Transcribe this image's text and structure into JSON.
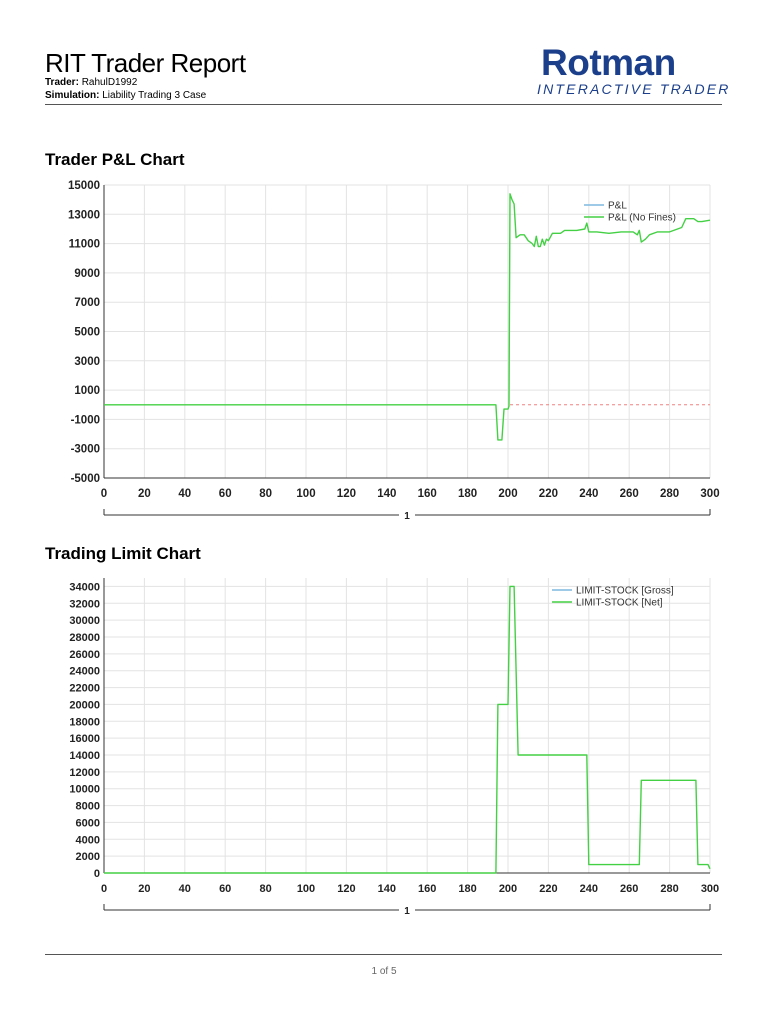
{
  "report": {
    "title": "RIT Trader Report",
    "trader_label": "Trader:",
    "trader_value": "RahulD1992",
    "simulation_label": "Simulation:",
    "simulation_value": "Liability Trading 3 Case"
  },
  "logo": {
    "main": "Rotman",
    "sub": "INTERACTIVE TRADER",
    "color": "#1b3f8b"
  },
  "footer": {
    "page": "1 of 5"
  },
  "chart_data": [
    {
      "id": "pnl",
      "type": "line",
      "title": "Trader P&L Chart",
      "xlim": [
        0,
        300
      ],
      "ylim": [
        -5000,
        15000
      ],
      "xticks": [
        0,
        20,
        40,
        60,
        80,
        100,
        120,
        140,
        160,
        180,
        200,
        220,
        240,
        260,
        280,
        300
      ],
      "yticks": [
        15000,
        13000,
        11000,
        9000,
        7000,
        5000,
        3000,
        1000,
        -1000,
        -3000,
        -5000
      ],
      "grid": true,
      "legend_position": "top-right",
      "period_label": "1",
      "reference_line": {
        "y": 0,
        "from_x": 201,
        "color": "#f08080"
      },
      "series": [
        {
          "name": "P&L",
          "color": "#7fb9e0",
          "points": []
        },
        {
          "name": "P&L (No Fines)",
          "color": "#44d044",
          "points": [
            [
              0,
              0
            ],
            [
              194,
              0
            ],
            [
              195,
              -2400
            ],
            [
              197,
              -2400
            ],
            [
              198,
              -300
            ],
            [
              200,
              -300
            ],
            [
              200.5,
              -100
            ],
            [
              201,
              14400
            ],
            [
              202,
              14000
            ],
            [
              203,
              13700
            ],
            [
              204,
              11400
            ],
            [
              206,
              11600
            ],
            [
              208,
              11600
            ],
            [
              210,
              11200
            ],
            [
              212,
              11000
            ],
            [
              213,
              10800
            ],
            [
              214,
              11500
            ],
            [
              215,
              10800
            ],
            [
              216,
              10800
            ],
            [
              217,
              11300
            ],
            [
              218,
              10900
            ],
            [
              219,
              11300
            ],
            [
              220,
              11200
            ],
            [
              222,
              11700
            ],
            [
              224,
              11700
            ],
            [
              226,
              11700
            ],
            [
              228,
              11900
            ],
            [
              230,
              11900
            ],
            [
              234,
              11900
            ],
            [
              238,
              12000
            ],
            [
              239,
              12400
            ],
            [
              240,
              11800
            ],
            [
              244,
              11800
            ],
            [
              250,
              11700
            ],
            [
              256,
              11800
            ],
            [
              262,
              11800
            ],
            [
              264,
              11600
            ],
            [
              265,
              11900
            ],
            [
              266,
              11100
            ],
            [
              268,
              11300
            ],
            [
              270,
              11600
            ],
            [
              274,
              11800
            ],
            [
              280,
              11800
            ],
            [
              286,
              12100
            ],
            [
              288,
              12700
            ],
            [
              292,
              12700
            ],
            [
              294,
              12500
            ],
            [
              296,
              12500
            ],
            [
              300,
              12600
            ]
          ]
        }
      ]
    },
    {
      "id": "limit",
      "type": "line",
      "title": "Trading Limit Chart",
      "xlim": [
        0,
        300
      ],
      "ylim": [
        0,
        35000
      ],
      "xticks": [
        0,
        20,
        40,
        60,
        80,
        100,
        120,
        140,
        160,
        180,
        200,
        220,
        240,
        260,
        280,
        300
      ],
      "yticks": [
        34000,
        32000,
        30000,
        28000,
        26000,
        24000,
        22000,
        20000,
        18000,
        16000,
        14000,
        12000,
        10000,
        8000,
        6000,
        4000,
        2000,
        0
      ],
      "grid": true,
      "legend_position": "top-right",
      "period_label": "1",
      "series": [
        {
          "name": "LIMIT-STOCK [Gross]",
          "color": "#7fb9e0",
          "points": []
        },
        {
          "name": "LIMIT-STOCK [Net]",
          "color": "#44d044",
          "points": [
            [
              0,
              0
            ],
            [
              194,
              0
            ],
            [
              195,
              20000
            ],
            [
              200,
              20000
            ],
            [
              201,
              34000
            ],
            [
              203,
              34000
            ],
            [
              205,
              14000
            ],
            [
              239,
              14000
            ],
            [
              240,
              1000
            ],
            [
              265,
              1000
            ],
            [
              266,
              11000
            ],
            [
              293,
              11000
            ],
            [
              294,
              1000
            ],
            [
              299,
              1000
            ],
            [
              300,
              500
            ]
          ]
        }
      ]
    }
  ]
}
